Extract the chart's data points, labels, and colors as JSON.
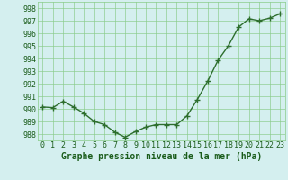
{
  "x": [
    0,
    1,
    2,
    3,
    4,
    5,
    6,
    7,
    8,
    9,
    10,
    11,
    12,
    13,
    14,
    15,
    16,
    17,
    18,
    19,
    20,
    21,
    22,
    23
  ],
  "y": [
    990.15,
    990.1,
    990.6,
    990.15,
    989.65,
    989.0,
    988.75,
    988.15,
    987.75,
    988.2,
    988.55,
    988.75,
    988.75,
    988.75,
    989.45,
    990.75,
    992.2,
    993.85,
    995.0,
    996.5,
    997.15,
    997.0,
    997.2,
    997.55
  ],
  "line_color": "#2d6e2d",
  "marker_color": "#2d6e2d",
  "bg_color": "#d4efef",
  "grid_color": "#88cc88",
  "xlabel": "Graphe pression niveau de la mer (hPa)",
  "xlabel_color": "#1a5c1a",
  "tick_color": "#1a5c1a",
  "ylim": [
    987.5,
    998.5
  ],
  "yticks": [
    988,
    989,
    990,
    991,
    992,
    993,
    994,
    995,
    996,
    997,
    998
  ],
  "xticks": [
    0,
    1,
    2,
    3,
    4,
    5,
    6,
    7,
    8,
    9,
    10,
    11,
    12,
    13,
    14,
    15,
    16,
    17,
    18,
    19,
    20,
    21,
    22,
    23
  ],
  "xlim": [
    -0.5,
    23.5
  ],
  "xlabel_fontsize": 7,
  "tick_fontsize": 6,
  "marker_size": 2.5,
  "line_width": 1.0
}
